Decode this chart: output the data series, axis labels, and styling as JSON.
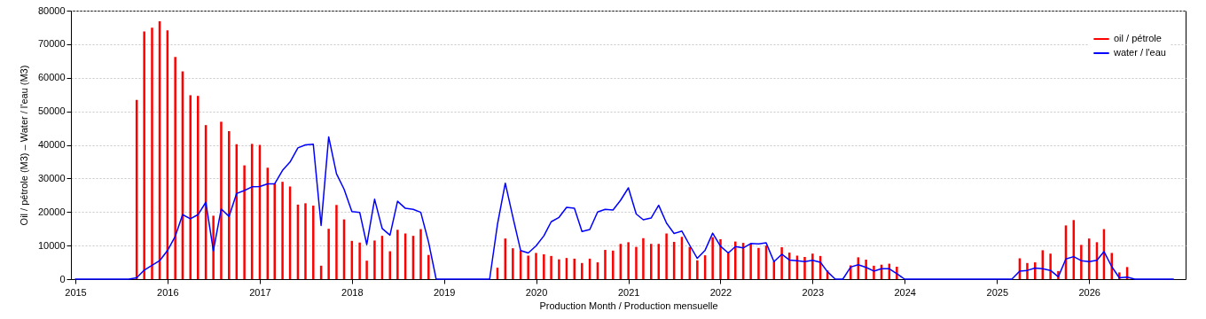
{
  "chart_data": {
    "type": "bar",
    "xlabel": "Production Month / Production mensuelle",
    "ylabel": "Oil / pétrole (M3)  –  Water / l'eau (M3)",
    "xlim": [
      "2015",
      "2027"
    ],
    "xticks": [
      "2015",
      "2016",
      "2017",
      "2018",
      "2019",
      "2020",
      "2021",
      "2022",
      "2023",
      "2024",
      "2025",
      "2026"
    ],
    "ylim": [
      0,
      80000
    ],
    "yticks": [
      0,
      10000,
      20000,
      30000,
      40000,
      50000,
      60000,
      70000,
      80000
    ],
    "grid": "y",
    "legend": "top right",
    "x": [
      "2015-01",
      "2015-02",
      "2015-03",
      "2015-04",
      "2015-05",
      "2015-06",
      "2015-07",
      "2015-08",
      "2015-09",
      "2015-10",
      "2015-11",
      "2015-12",
      "2016-01",
      "2016-02",
      "2016-03",
      "2016-04",
      "2016-05",
      "2016-06",
      "2016-07",
      "2016-08",
      "2016-09",
      "2016-10",
      "2016-11",
      "2016-12",
      "2017-01",
      "2017-02",
      "2017-03",
      "2017-04",
      "2017-05",
      "2017-06",
      "2017-07",
      "2017-08",
      "2017-09",
      "2017-10",
      "2017-11",
      "2017-12",
      "2018-01",
      "2018-02",
      "2018-03",
      "2018-04",
      "2018-05",
      "2018-06",
      "2018-07",
      "2018-08",
      "2018-09",
      "2018-10",
      "2018-11",
      "2018-12",
      "2019-01",
      "2019-02",
      "2019-03",
      "2019-04",
      "2019-05",
      "2019-06",
      "2019-07",
      "2019-08",
      "2019-09",
      "2019-10",
      "2019-11",
      "2019-12",
      "2020-01",
      "2020-02",
      "2020-03",
      "2020-04",
      "2020-05",
      "2020-06",
      "2020-07",
      "2020-08",
      "2020-09",
      "2020-10",
      "2020-11",
      "2020-12",
      "2021-01",
      "2021-02",
      "2021-03",
      "2021-04",
      "2021-05",
      "2021-06",
      "2021-07",
      "2021-08",
      "2021-09",
      "2021-10",
      "2021-11",
      "2021-12",
      "2022-01",
      "2022-02",
      "2022-03",
      "2022-04",
      "2022-05",
      "2022-06",
      "2022-07",
      "2022-08",
      "2022-09",
      "2022-10",
      "2022-11",
      "2022-12",
      "2023-01",
      "2023-02",
      "2023-03",
      "2023-04",
      "2023-05",
      "2023-06",
      "2023-07",
      "2023-08",
      "2023-09",
      "2023-10",
      "2023-11",
      "2023-12",
      "2024-01",
      "2024-02",
      "2024-03",
      "2024-04",
      "2024-05",
      "2024-06",
      "2024-07",
      "2024-08",
      "2024-09",
      "2024-10",
      "2024-11",
      "2024-12",
      "2025-01",
      "2025-02",
      "2025-03",
      "2025-04",
      "2025-05",
      "2025-06",
      "2025-07",
      "2025-08",
      "2025-09",
      "2025-10",
      "2025-11",
      "2025-12",
      "2026-01",
      "2026-02",
      "2026-03",
      "2026-04",
      "2026-05",
      "2026-06",
      "2026-07",
      "2026-08",
      "2026-09",
      "2026-10",
      "2026-11",
      "2026-12"
    ],
    "series": [
      {
        "name": "oil / pétrole",
        "color": "#ff0000",
        "x": [
          "2015-09",
          "2015-10",
          "2015-11",
          "2015-12",
          "2016-01",
          "2016-02",
          "2016-03",
          "2016-04",
          "2016-05",
          "2016-06",
          "2016-07",
          "2016-08",
          "2016-09",
          "2016-10",
          "2016-11",
          "2016-12",
          "2017-01",
          "2017-02",
          "2017-03",
          "2017-04",
          "2017-05",
          "2017-06",
          "2017-07",
          "2017-08",
          "2017-09",
          "2017-10",
          "2017-11",
          "2017-12",
          "2018-01",
          "2018-02",
          "2018-03",
          "2018-04",
          "2018-05",
          "2018-06",
          "2018-07",
          "2018-08",
          "2018-09",
          "2018-10",
          "2018-11",
          "2019-08",
          "2019-09",
          "2019-10",
          "2019-11",
          "2019-12",
          "2020-01",
          "2020-02",
          "2020-03",
          "2020-04",
          "2020-05",
          "2020-06",
          "2020-07",
          "2020-08",
          "2020-09",
          "2020-10",
          "2020-11",
          "2020-12",
          "2021-01",
          "2021-02",
          "2021-03",
          "2021-04",
          "2021-05",
          "2021-06",
          "2021-07",
          "2021-08",
          "2021-09",
          "2021-10",
          "2021-11",
          "2021-12",
          "2022-01",
          "2022-02",
          "2022-03",
          "2022-04",
          "2022-05",
          "2022-06",
          "2022-07",
          "2022-08",
          "2022-09",
          "2022-10",
          "2022-11",
          "2022-12",
          "2023-01",
          "2023-02",
          "2023-03",
          "2023-06",
          "2023-07",
          "2023-08",
          "2023-09",
          "2023-10",
          "2023-11",
          "2023-12",
          "2025-04",
          "2025-05",
          "2025-06",
          "2025-07",
          "2025-08",
          "2025-09",
          "2025-10",
          "2025-11",
          "2025-12",
          "2026-01",
          "2026-02",
          "2026-03",
          "2026-04",
          "2026-05",
          "2026-06"
        ],
        "values": [
          53400,
          73800,
          74900,
          76800,
          74100,
          66200,
          61900,
          54800,
          54600,
          45900,
          18900,
          46900,
          44100,
          40200,
          33900,
          40300,
          40000,
          33200,
          28500,
          29000,
          27600,
          22200,
          22600,
          21900,
          4000,
          15000,
          22100,
          17800,
          11400,
          10900,
          5500,
          11500,
          12900,
          8300,
          14700,
          13600,
          12900,
          14900,
          7200,
          3400,
          12100,
          9200,
          8500,
          7000,
          7800,
          7400,
          6900,
          5900,
          6300,
          6100,
          4800,
          6100,
          5000,
          8700,
          8500,
          10500,
          11000,
          9600,
          12200,
          10500,
          10500,
          13600,
          11100,
          12600,
          9600,
          5600,
          7100,
          12500,
          11900,
          7800,
          11200,
          10800,
          10600,
          9300,
          10000,
          5300,
          9500,
          7900,
          7000,
          6600,
          7600,
          6900,
          2600,
          4100,
          6500,
          5800,
          4000,
          4300,
          4600,
          3700,
          6200,
          4800,
          5000,
          8600,
          7600,
          2400,
          16000,
          17600,
          10200,
          12100,
          11000,
          14900,
          7800,
          2000,
          3600
        ]
      },
      {
        "name": "water / l'eau",
        "type": "line",
        "color": "#0000ff",
        "values": [
          0,
          0,
          0,
          0,
          0,
          0,
          0,
          0,
          400,
          2700,
          4100,
          5500,
          8500,
          12800,
          19200,
          18000,
          19200,
          22900,
          8500,
          20900,
          18700,
          25500,
          26400,
          27500,
          27600,
          28400,
          28400,
          32400,
          34900,
          39100,
          40000,
          40200,
          16000,
          42400,
          31400,
          26800,
          20100,
          19900,
          10300,
          23800,
          15100,
          13100,
          23200,
          21100,
          20800,
          19900,
          11000,
          0,
          0,
          0,
          0,
          0,
          0,
          0,
          0,
          16300,
          28600,
          18500,
          8500,
          7800,
          9900,
          12900,
          17100,
          18400,
          21400,
          21100,
          14200,
          14800,
          20000,
          20800,
          20600,
          23500,
          27200,
          19400,
          17700,
          18200,
          22000,
          16700,
          13600,
          14300,
          10100,
          6200,
          8600,
          13700,
          9800,
          7800,
          9700,
          9300,
          10600,
          10500,
          10800,
          5200,
          7400,
          5700,
          5500,
          5200,
          5600,
          5000,
          2200,
          0,
          0,
          3600,
          4300,
          3500,
          2400,
          3100,
          3100,
          1600,
          0,
          0,
          0,
          0,
          0,
          0,
          0,
          0,
          0,
          0,
          0,
          0,
          0,
          0,
          0,
          2400,
          2600,
          3300,
          3100,
          2600,
          700,
          6000,
          6700,
          5500,
          5200,
          5600,
          8200,
          3700,
          400,
          600,
          0,
          0,
          0,
          0,
          0,
          0
        ]
      }
    ]
  }
}
